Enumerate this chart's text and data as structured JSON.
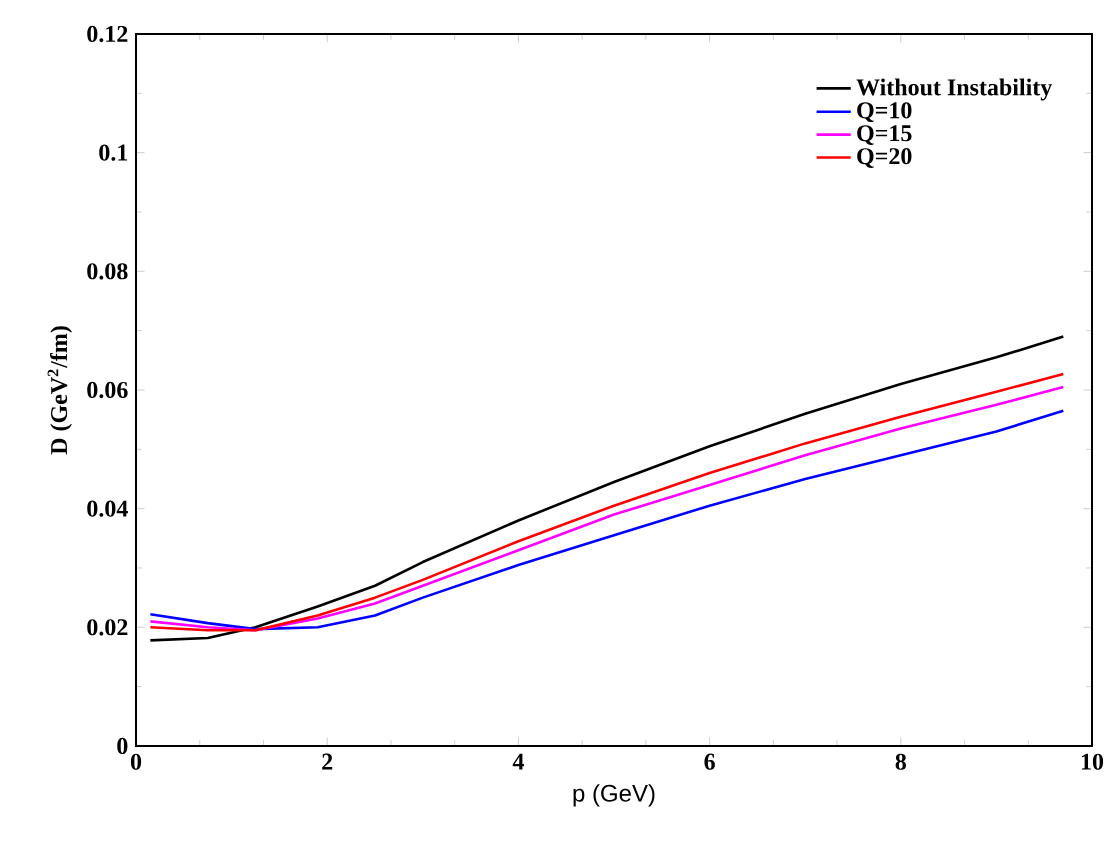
{
  "chart_data": {
    "type": "line",
    "xlabel": "p (GeV)",
    "ylabel": "D (GeV$^{2}$/fm)",
    "x": [
      0.15,
      0.75,
      1.25,
      1.9,
      2.5,
      3,
      4,
      5,
      6,
      7,
      8,
      9,
      9.7
    ],
    "series": [
      {
        "name": "Without Instability",
        "color": "#000000",
        "values": [
          0.0178,
          0.0182,
          0.02,
          0.0235,
          0.027,
          0.031,
          0.038,
          0.0445,
          0.0505,
          0.056,
          0.061,
          0.0655,
          0.069
        ]
      },
      {
        "name": "Q=10",
        "color": "#0000ff",
        "values": [
          0.0222,
          0.0207,
          0.0197,
          0.02,
          0.022,
          0.025,
          0.0305,
          0.0355,
          0.0405,
          0.045,
          0.049,
          0.053,
          0.0565
        ]
      },
      {
        "name": "Q=15",
        "color": "#ff00ff",
        "values": [
          0.021,
          0.02,
          0.0195,
          0.0215,
          0.024,
          0.027,
          0.033,
          0.039,
          0.044,
          0.049,
          0.0535,
          0.0575,
          0.0605
        ]
      },
      {
        "name": "Q=20",
        "color": "#ff0000",
        "values": [
          0.02,
          0.0195,
          0.0195,
          0.022,
          0.025,
          0.028,
          0.0345,
          0.0405,
          0.046,
          0.051,
          0.0555,
          0.0597,
          0.0627
        ]
      }
    ],
    "xlim": [
      0,
      10
    ],
    "ylim": [
      0,
      0.12
    ],
    "xticks": [
      0,
      2,
      4,
      6,
      8,
      10
    ],
    "yticks": [
      0,
      0.02,
      0.04,
      0.06,
      0.08,
      0.1,
      0.12
    ],
    "legend": "top right",
    "grid": false,
    "marker": "none",
    "line_style": "solid"
  }
}
